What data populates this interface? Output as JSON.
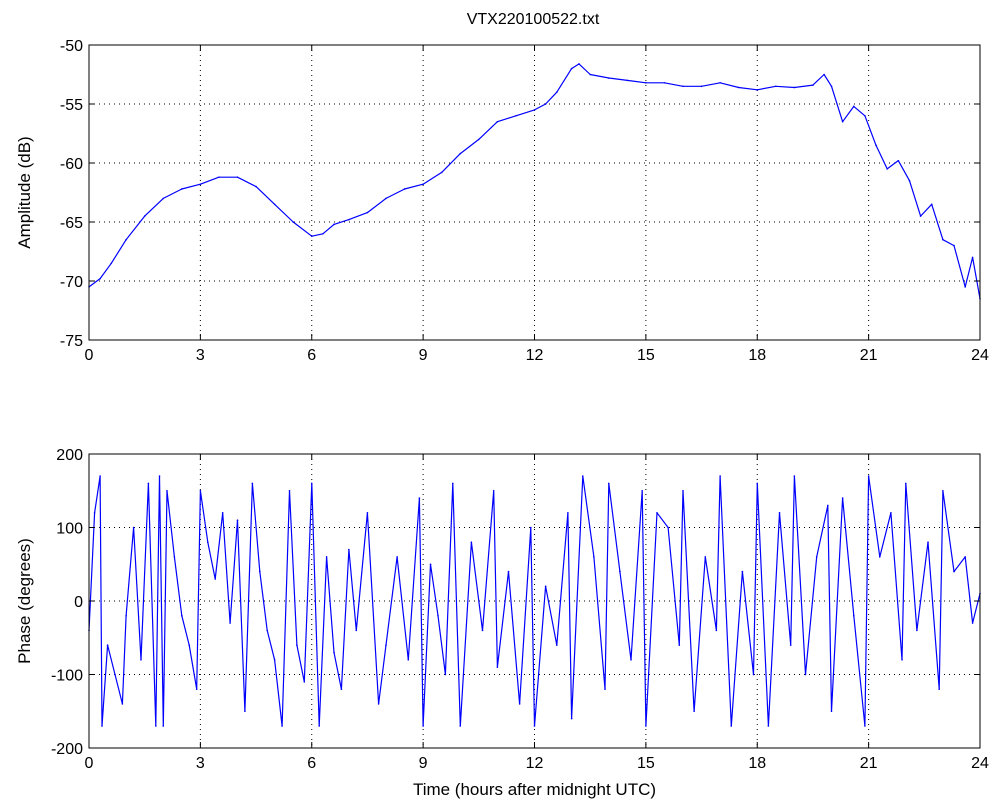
{
  "figure_title": "VTX220100522.txt",
  "chart_data": [
    {
      "type": "line",
      "name": "amplitude-chart",
      "title": "VTX220100522.txt",
      "xlabel": "",
      "ylabel": "Amplitude (dB)",
      "xlim": [
        0,
        24
      ],
      "ylim": [
        -75,
        -50
      ],
      "xticks": [
        0,
        3,
        6,
        9,
        12,
        15,
        18,
        21,
        24
      ],
      "yticks": [
        -50,
        -55,
        -60,
        -65,
        -70,
        -75
      ],
      "grid": true,
      "color": "#0000ff",
      "series": [
        {
          "x": [
            0,
            0.3,
            0.6,
            1.0,
            1.5,
            2.0,
            2.5,
            3.0,
            3.5,
            4.0,
            4.5,
            5.0,
            5.5,
            6.0,
            6.3,
            6.6,
            7.0,
            7.5,
            8.0,
            8.5,
            9.0,
            9.5,
            10.0,
            10.5,
            11.0,
            11.5,
            12.0,
            12.3,
            12.6,
            13.0,
            13.2,
            13.5,
            14.0,
            14.5,
            15.0,
            15.5,
            16.0,
            16.5,
            17.0,
            17.5,
            18.0,
            18.5,
            19.0,
            19.5,
            19.8,
            20.0,
            20.3,
            20.6,
            20.9,
            21.2,
            21.5,
            21.8,
            22.1,
            22.4,
            22.7,
            23.0,
            23.3,
            23.6,
            23.8,
            24.0
          ],
          "y": [
            -70.5,
            -69.8,
            -68.5,
            -66.5,
            -64.5,
            -63.0,
            -62.2,
            -61.8,
            -61.2,
            -61.2,
            -62.0,
            -63.5,
            -65.0,
            -66.2,
            -66.0,
            -65.2,
            -64.8,
            -64.2,
            -63.0,
            -62.2,
            -61.8,
            -60.8,
            -59.2,
            -58.0,
            -56.5,
            -56.0,
            -55.5,
            -55.0,
            -54.0,
            -52.0,
            -51.6,
            -52.5,
            -52.8,
            -53.0,
            -53.2,
            -53.2,
            -53.5,
            -53.5,
            -53.2,
            -53.6,
            -53.8,
            -53.5,
            -53.6,
            -53.4,
            -52.5,
            -53.5,
            -56.5,
            -55.2,
            -56.0,
            -58.5,
            -60.5,
            -59.8,
            -61.5,
            -64.5,
            -63.5,
            -66.5,
            -67.0,
            -70.5,
            -68.0,
            -71.5
          ]
        }
      ]
    },
    {
      "type": "line",
      "name": "phase-chart",
      "title": "",
      "xlabel": "Time (hours after midnight UTC)",
      "ylabel": "Phase (degrees)",
      "xlim": [
        0,
        24
      ],
      "ylim": [
        -200,
        200
      ],
      "xticks": [
        0,
        3,
        6,
        9,
        12,
        15,
        18,
        21,
        24
      ],
      "yticks": [
        200,
        100,
        0,
        -100,
        -200
      ],
      "grid": true,
      "color": "#0000ff",
      "series": [
        {
          "x": [
            0,
            0.15,
            0.3,
            0.35,
            0.5,
            0.7,
            0.9,
            1.0,
            1.2,
            1.4,
            1.6,
            1.8,
            1.9,
            2.0,
            2.1,
            2.3,
            2.5,
            2.7,
            2.9,
            3.0,
            3.2,
            3.4,
            3.6,
            3.8,
            4.0,
            4.2,
            4.4,
            4.6,
            4.8,
            5.0,
            5.2,
            5.4,
            5.6,
            5.8,
            6.0,
            6.2,
            6.4,
            6.6,
            6.8,
            7.0,
            7.2,
            7.5,
            7.8,
            8.0,
            8.3,
            8.6,
            8.9,
            9.0,
            9.2,
            9.4,
            9.6,
            9.8,
            10.0,
            10.3,
            10.6,
            10.9,
            11.0,
            11.3,
            11.6,
            11.9,
            12.0,
            12.3,
            12.6,
            12.9,
            13.0,
            13.3,
            13.6,
            13.9,
            14.0,
            14.3,
            14.6,
            14.9,
            15.0,
            15.3,
            15.6,
            15.9,
            16.0,
            16.3,
            16.6,
            16.9,
            17.0,
            17.3,
            17.6,
            17.9,
            18.0,
            18.3,
            18.6,
            18.9,
            19.0,
            19.3,
            19.6,
            19.9,
            20.0,
            20.3,
            20.6,
            20.9,
            21.0,
            21.3,
            21.6,
            21.9,
            22.0,
            22.3,
            22.6,
            22.9,
            23.0,
            23.3,
            23.6,
            23.8,
            24.0
          ],
          "y": [
            -40,
            120,
            170,
            -170,
            -60,
            -100,
            -140,
            -20,
            100,
            -80,
            160,
            -170,
            170,
            -170,
            150,
            60,
            -20,
            -60,
            -120,
            150,
            80,
            30,
            120,
            -30,
            110,
            -150,
            160,
            40,
            -40,
            -80,
            -170,
            150,
            -60,
            -110,
            160,
            -170,
            60,
            -70,
            -120,
            70,
            -40,
            120,
            -140,
            -60,
            60,
            -80,
            140,
            -170,
            50,
            -20,
            -100,
            160,
            -170,
            80,
            -40,
            150,
            -90,
            40,
            -140,
            100,
            -170,
            20,
            -60,
            120,
            -160,
            170,
            60,
            -120,
            160,
            40,
            -80,
            150,
            -170,
            120,
            100,
            -60,
            150,
            -150,
            60,
            -40,
            170,
            -170,
            40,
            -100,
            160,
            -170,
            120,
            -60,
            170,
            -100,
            60,
            130,
            -150,
            140,
            -20,
            -170,
            170,
            60,
            120,
            -80,
            160,
            -40,
            80,
            -120,
            150,
            40,
            60,
            -30,
            10
          ]
        }
      ]
    }
  ]
}
